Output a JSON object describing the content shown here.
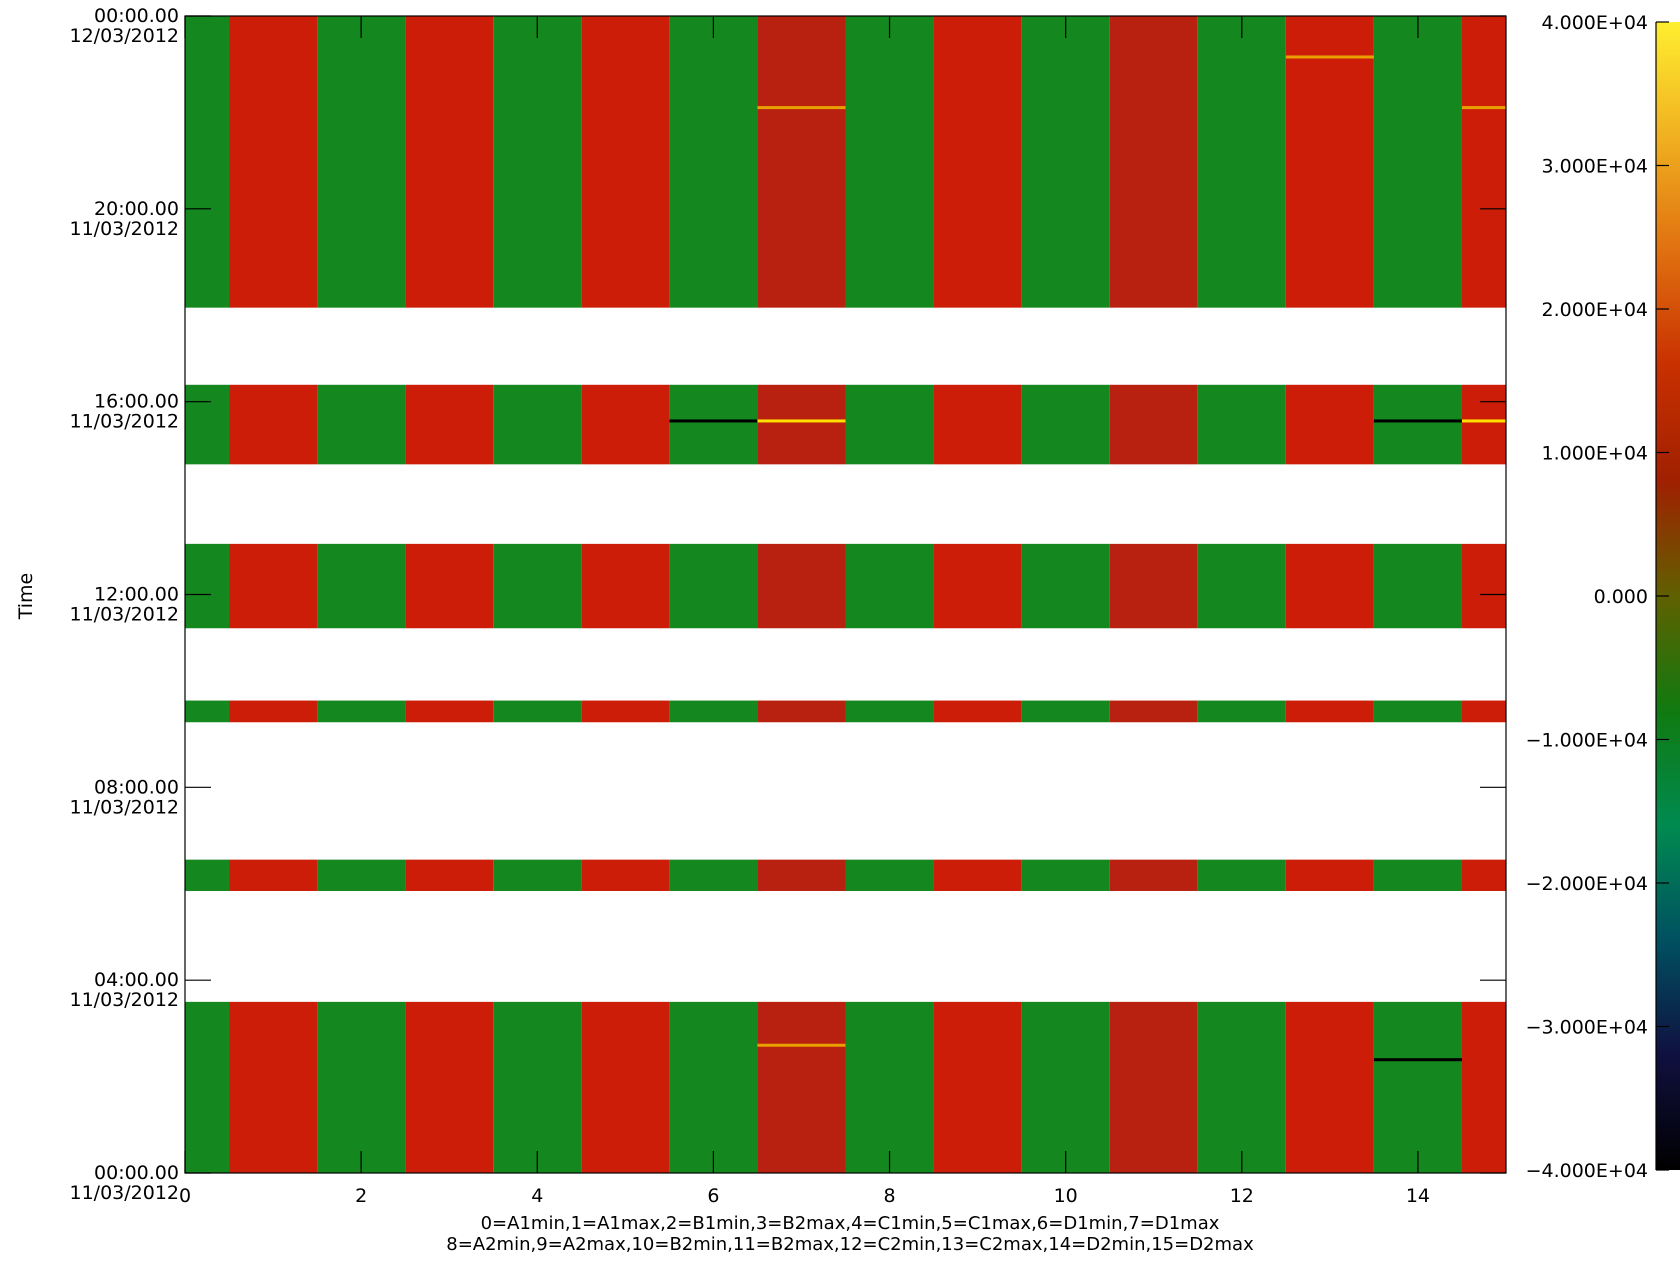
{
  "chart_data": {
    "type": "heatmap",
    "title": "",
    "ylabel": "Time",
    "xlabel_lines": [
      "0=A1min,1=A1max,2=B1min,3=B2max,4=C1min,5=C1max,6=D1min,7=D1max",
      "8=A2min,9=A2max,10=B2min,11=B2max,12=C2min,13=C2max,14=D2min,15=D2max"
    ],
    "x_range": [
      0,
      15
    ],
    "x_ticks": [
      "0",
      "2",
      "4",
      "6",
      "8",
      "10",
      "12",
      "14"
    ],
    "x_tick_values": [
      0,
      2,
      4,
      6,
      8,
      10,
      12,
      14
    ],
    "channels": [
      0,
      1,
      2,
      3,
      4,
      5,
      6,
      7,
      8,
      9,
      10,
      11,
      12,
      13,
      14,
      15
    ],
    "channel_base_color": [
      "green",
      "red",
      "green",
      "red",
      "green",
      "red",
      "green",
      "red",
      "green",
      "red",
      "green",
      "red",
      "green",
      "red",
      "green",
      "red"
    ],
    "y_range_hours": [
      0,
      24
    ],
    "y_ticks": [
      {
        "hours": 24,
        "time": "00:00.00",
        "date": "12/03/2012"
      },
      {
        "hours": 20,
        "time": "20:00.00",
        "date": "11/03/2012"
      },
      {
        "hours": 16,
        "time": "16:00.00",
        "date": "11/03/2012"
      },
      {
        "hours": 12,
        "time": "12:00.00",
        "date": "11/03/2012"
      },
      {
        "hours": 8,
        "time": "08:00.00",
        "date": "11/03/2012"
      },
      {
        "hours": 4,
        "time": "04:00.00",
        "date": "11/03/2012"
      },
      {
        "hours": 0,
        "time": "00:00.00",
        "date": "11/03/2012"
      }
    ],
    "data_bands_hours": [
      [
        0,
        3.55
      ],
      [
        5.85,
        6.5
      ],
      [
        9.35,
        9.8
      ],
      [
        11.3,
        13.05
      ],
      [
        14.7,
        16.35
      ],
      [
        17.95,
        24
      ]
    ],
    "highlight_lines": [
      {
        "channel": 6,
        "hours": 15.6,
        "color": "#000000"
      },
      {
        "channel": 7,
        "hours": 15.6,
        "color": "#ffe000"
      },
      {
        "channel": 14,
        "hours": 15.6,
        "color": "#000000"
      },
      {
        "channel": 15,
        "hours": 15.6,
        "color": "#ffe000"
      },
      {
        "channel": 14,
        "hours": 2.35,
        "color": "#000000"
      },
      {
        "channel": 7,
        "hours": 2.65,
        "color": "#e8a000"
      },
      {
        "channel": 13,
        "hours": 23.15,
        "color": "#e8a000"
      },
      {
        "channel": 7,
        "hours": 22.1,
        "color": "#e8a000"
      },
      {
        "channel": 15,
        "hours": 22.1,
        "color": "#e8a000"
      }
    ],
    "colorbar": {
      "range": [
        -40000,
        40000
      ],
      "ticks": [
        {
          "value": 40000,
          "label": "4.000E+04"
        },
        {
          "value": 30000,
          "label": "3.000E+04"
        },
        {
          "value": 20000,
          "label": "2.000E+04"
        },
        {
          "value": 10000,
          "label": "1.000E+04"
        },
        {
          "value": 0,
          "label": "0.000"
        },
        {
          "value": -10000,
          "label": "−1.000E+04"
        },
        {
          "value": -20000,
          "label": "−2.000E+04"
        },
        {
          "value": -30000,
          "label": "−3.000E+04"
        },
        {
          "value": -40000,
          "label": "−4.000E+04"
        }
      ],
      "colors": [
        "#000000",
        "#101040",
        "#005060",
        "#008a50",
        "#107a10",
        "#606000",
        "#a02000",
        "#c83000",
        "#e07010",
        "#f0b020",
        "#ffee30"
      ]
    },
    "grid": false,
    "legend": "colorbar-right"
  },
  "palette": {
    "green": "#14871f",
    "red": "#cc1d08",
    "red_dark": "#b82010",
    "axis": "#000000",
    "background": "#ffffff"
  }
}
